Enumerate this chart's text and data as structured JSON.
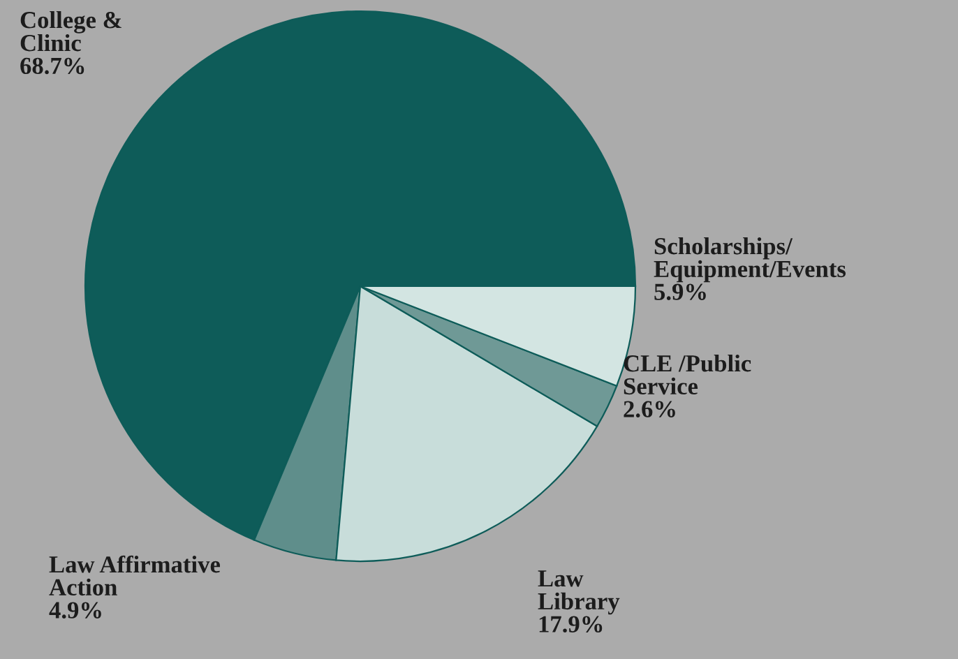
{
  "chart_data": {
    "type": "pie",
    "categories": [
      "College &\nClinic",
      "Law Affirmative\nAction",
      "Law\nLibrary",
      "CLE /Public\nService",
      "Scholarships/\nEquipment/Events"
    ],
    "values": [
      68.7,
      4.9,
      17.9,
      2.6,
      5.9
    ],
    "colors": [
      "#0e5c59",
      "#5f8e8b",
      "#c8ddda",
      "#6f9996",
      "#d3e5e2"
    ],
    "value_labels": [
      "68.7%",
      "4.9%",
      "17.9%",
      "2.6%",
      "5.9%"
    ]
  }
}
